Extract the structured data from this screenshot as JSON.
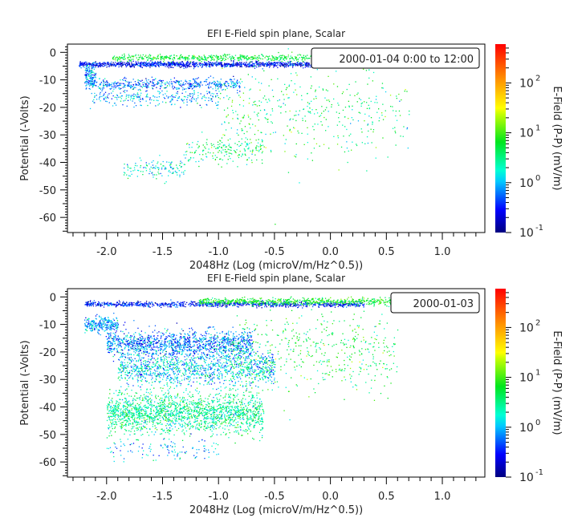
{
  "chart_data": [
    {
      "type": "scatter",
      "title": "EFI  E-Field spin plane, Scalar",
      "xlabel": "2048Hz (Log (microV/m/Hz^0.5))",
      "ylabel": "Potential (-Volts)",
      "legend": "2000-01-04 0:00 to 12:00",
      "legend_placement": "top-right",
      "xlim": [
        -2.35,
        1.38
      ],
      "ylim": [
        -65.5,
        3
      ],
      "xticks": [
        "-2.0",
        "-1.5",
        "-1.0",
        "-0.5",
        "0.0",
        "0.5",
        "1.0"
      ],
      "yticks": [
        "0",
        "-10",
        "-20",
        "-30",
        "-40",
        "-50",
        "-60"
      ],
      "colorbar": {
        "label": "E-Field (P-P) (mV/m)",
        "scale": "log",
        "range": [
          0.1,
          600
        ],
        "ticks": [
          "10",
          "10",
          "10",
          "10"
        ],
        "tick_exponents": [
          "-1",
          "0",
          "1",
          "2"
        ]
      },
      "clusters": [
        {
          "x": [
            -2.25,
            0.35
          ],
          "y": -4.2,
          "y_spread": 0.8,
          "log_value": -0.55,
          "value_spread": 0.25,
          "count": 1400
        },
        {
          "x": [
            -1.95,
            0.55
          ],
          "y": -1.8,
          "y_spread": 0.9,
          "log_value": 0.75,
          "value_spread": 0.2,
          "count": 700
        },
        {
          "x": [
            -2.2,
            -0.8
          ],
          "y": -11.5,
          "y_spread": 1.8,
          "log_value": -0.2,
          "value_spread": 0.3,
          "count": 500
        },
        {
          "x": [
            -2.15,
            -1.0
          ],
          "y": -16.5,
          "y_spread": 2.5,
          "log_value": -0.05,
          "value_spread": 0.3,
          "count": 250
        },
        {
          "x": [
            -2.2,
            -2.1
          ],
          "y": -8,
          "y_spread": 3,
          "log_value": -0.1,
          "value_spread": 0.3,
          "count": 120
        },
        {
          "x": [
            -1.0,
            0.7
          ],
          "y": -22,
          "y_spread": 14,
          "log_value": 0.6,
          "value_spread": 0.35,
          "count": 450
        },
        {
          "x": [
            -1.3,
            -0.6
          ],
          "y": -35,
          "y_spread": 4,
          "log_value": 0.6,
          "value_spread": 0.3,
          "count": 180
        },
        {
          "x": [
            -1.85,
            -1.3
          ],
          "y": -42,
          "y_spread": 3,
          "log_value": 0.2,
          "value_spread": 0.3,
          "count": 130
        }
      ]
    },
    {
      "type": "scatter",
      "title": "EFI  E-Field spin plane, Scalar",
      "xlabel": "2048Hz (Log (microV/m/Hz^0.5))",
      "ylabel": "Potential (-Volts)",
      "legend": "2000-01-03",
      "legend_placement": "top-right",
      "xlim": [
        -2.35,
        1.38
      ],
      "ylim": [
        -65.5,
        3
      ],
      "xticks": [
        "-2.0",
        "-1.5",
        "-1.0",
        "-0.5",
        "0.0",
        "0.5",
        "1.0"
      ],
      "yticks": [
        "0",
        "-10",
        "-20",
        "-30",
        "-40",
        "-50",
        "-60"
      ],
      "colorbar": {
        "label": "E-Field (P-P) (mV/m)",
        "scale": "log",
        "range": [
          0.1,
          600
        ],
        "ticks": [
          "10",
          "10",
          "10",
          "10"
        ],
        "tick_exponents": [
          "-1",
          "0",
          "1",
          "2"
        ]
      },
      "clusters": [
        {
          "x": [
            -2.2,
            0.3
          ],
          "y": -2.5,
          "y_spread": 0.8,
          "log_value": -0.5,
          "value_spread": 0.25,
          "count": 900
        },
        {
          "x": [
            -1.2,
            1.3
          ],
          "y": -1.5,
          "y_spread": 1.0,
          "log_value": 0.8,
          "value_spread": 0.2,
          "count": 900
        },
        {
          "x": [
            -2.2,
            -1.9
          ],
          "y": -10,
          "y_spread": 2.5,
          "log_value": -0.1,
          "value_spread": 0.3,
          "count": 250
        },
        {
          "x": [
            -2.0,
            -0.7
          ],
          "y": -17,
          "y_spread": 4,
          "log_value": -0.2,
          "value_spread": 0.35,
          "count": 1300
        },
        {
          "x": [
            -1.9,
            -0.5
          ],
          "y": -26,
          "y_spread": 5,
          "log_value": 0.1,
          "value_spread": 0.35,
          "count": 1200
        },
        {
          "x": [
            -2.0,
            -0.6
          ],
          "y": -42,
          "y_spread": 6,
          "log_value": 0.45,
          "value_spread": 0.3,
          "count": 1900
        },
        {
          "x": [
            -0.9,
            0.6
          ],
          "y": -20,
          "y_spread": 12,
          "log_value": 0.7,
          "value_spread": 0.3,
          "count": 500
        },
        {
          "x": [
            -2.0,
            -1.0
          ],
          "y": -55,
          "y_spread": 4,
          "log_value": 0.0,
          "value_spread": 0.3,
          "count": 120
        }
      ]
    }
  ]
}
